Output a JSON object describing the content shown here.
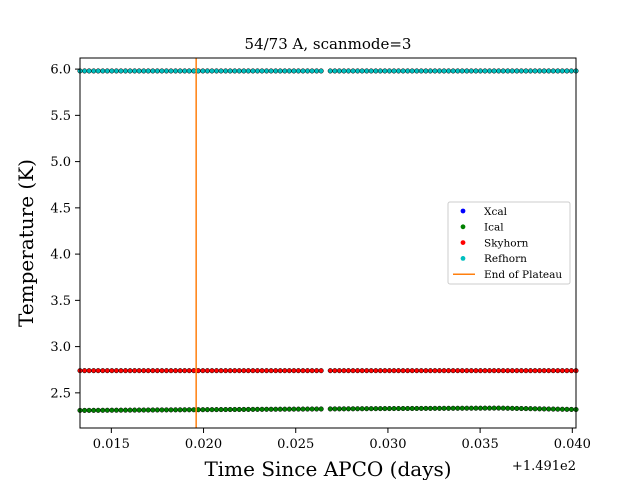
{
  "chart_data": {
    "type": "scatter",
    "title": "54/73 A, scanmode=3",
    "xlabel": "Time Since APCO (days)",
    "ylabel": "Temperature (K)",
    "x_offset_label": "+1.491e2",
    "xlim": [
      0.0133,
      0.0402
    ],
    "ylim": [
      2.12,
      6.12
    ],
    "xticks": [
      0.015,
      0.02,
      0.025,
      0.03,
      0.035,
      0.04
    ],
    "xtick_labels": [
      "0.015",
      "0.020",
      "0.025",
      "0.030",
      "0.035",
      "0.040"
    ],
    "yticks": [
      2.5,
      3.0,
      3.5,
      4.0,
      4.5,
      5.0,
      5.5,
      6.0
    ],
    "ytick_labels": [
      "2.5",
      "3.0",
      "3.5",
      "4.0",
      "4.5",
      "5.0",
      "5.5",
      "6.0"
    ],
    "grid": false,
    "legend_position": "center-right",
    "x_start": 0.0133,
    "x_end": 0.0402,
    "n_points": 110,
    "gap_x": 0.0267,
    "series": [
      {
        "name": "Xcal",
        "color": "#0000ff",
        "level": 2.74,
        "visible": false
      },
      {
        "name": "Ical",
        "color": "#008000",
        "level": 2.32,
        "drift": [
          [
            0.0133,
            2.31
          ],
          [
            0.03,
            2.33
          ],
          [
            0.036,
            2.335
          ],
          [
            0.0402,
            2.32
          ]
        ]
      },
      {
        "name": "Skyhorn",
        "color": "#ff0000",
        "level": 2.74
      },
      {
        "name": "Refhorn",
        "color": "#00bfbf",
        "level": 5.98
      }
    ],
    "vline": {
      "name": "End of Plateau",
      "x": 0.0196,
      "color": "#ff7f0e"
    }
  }
}
